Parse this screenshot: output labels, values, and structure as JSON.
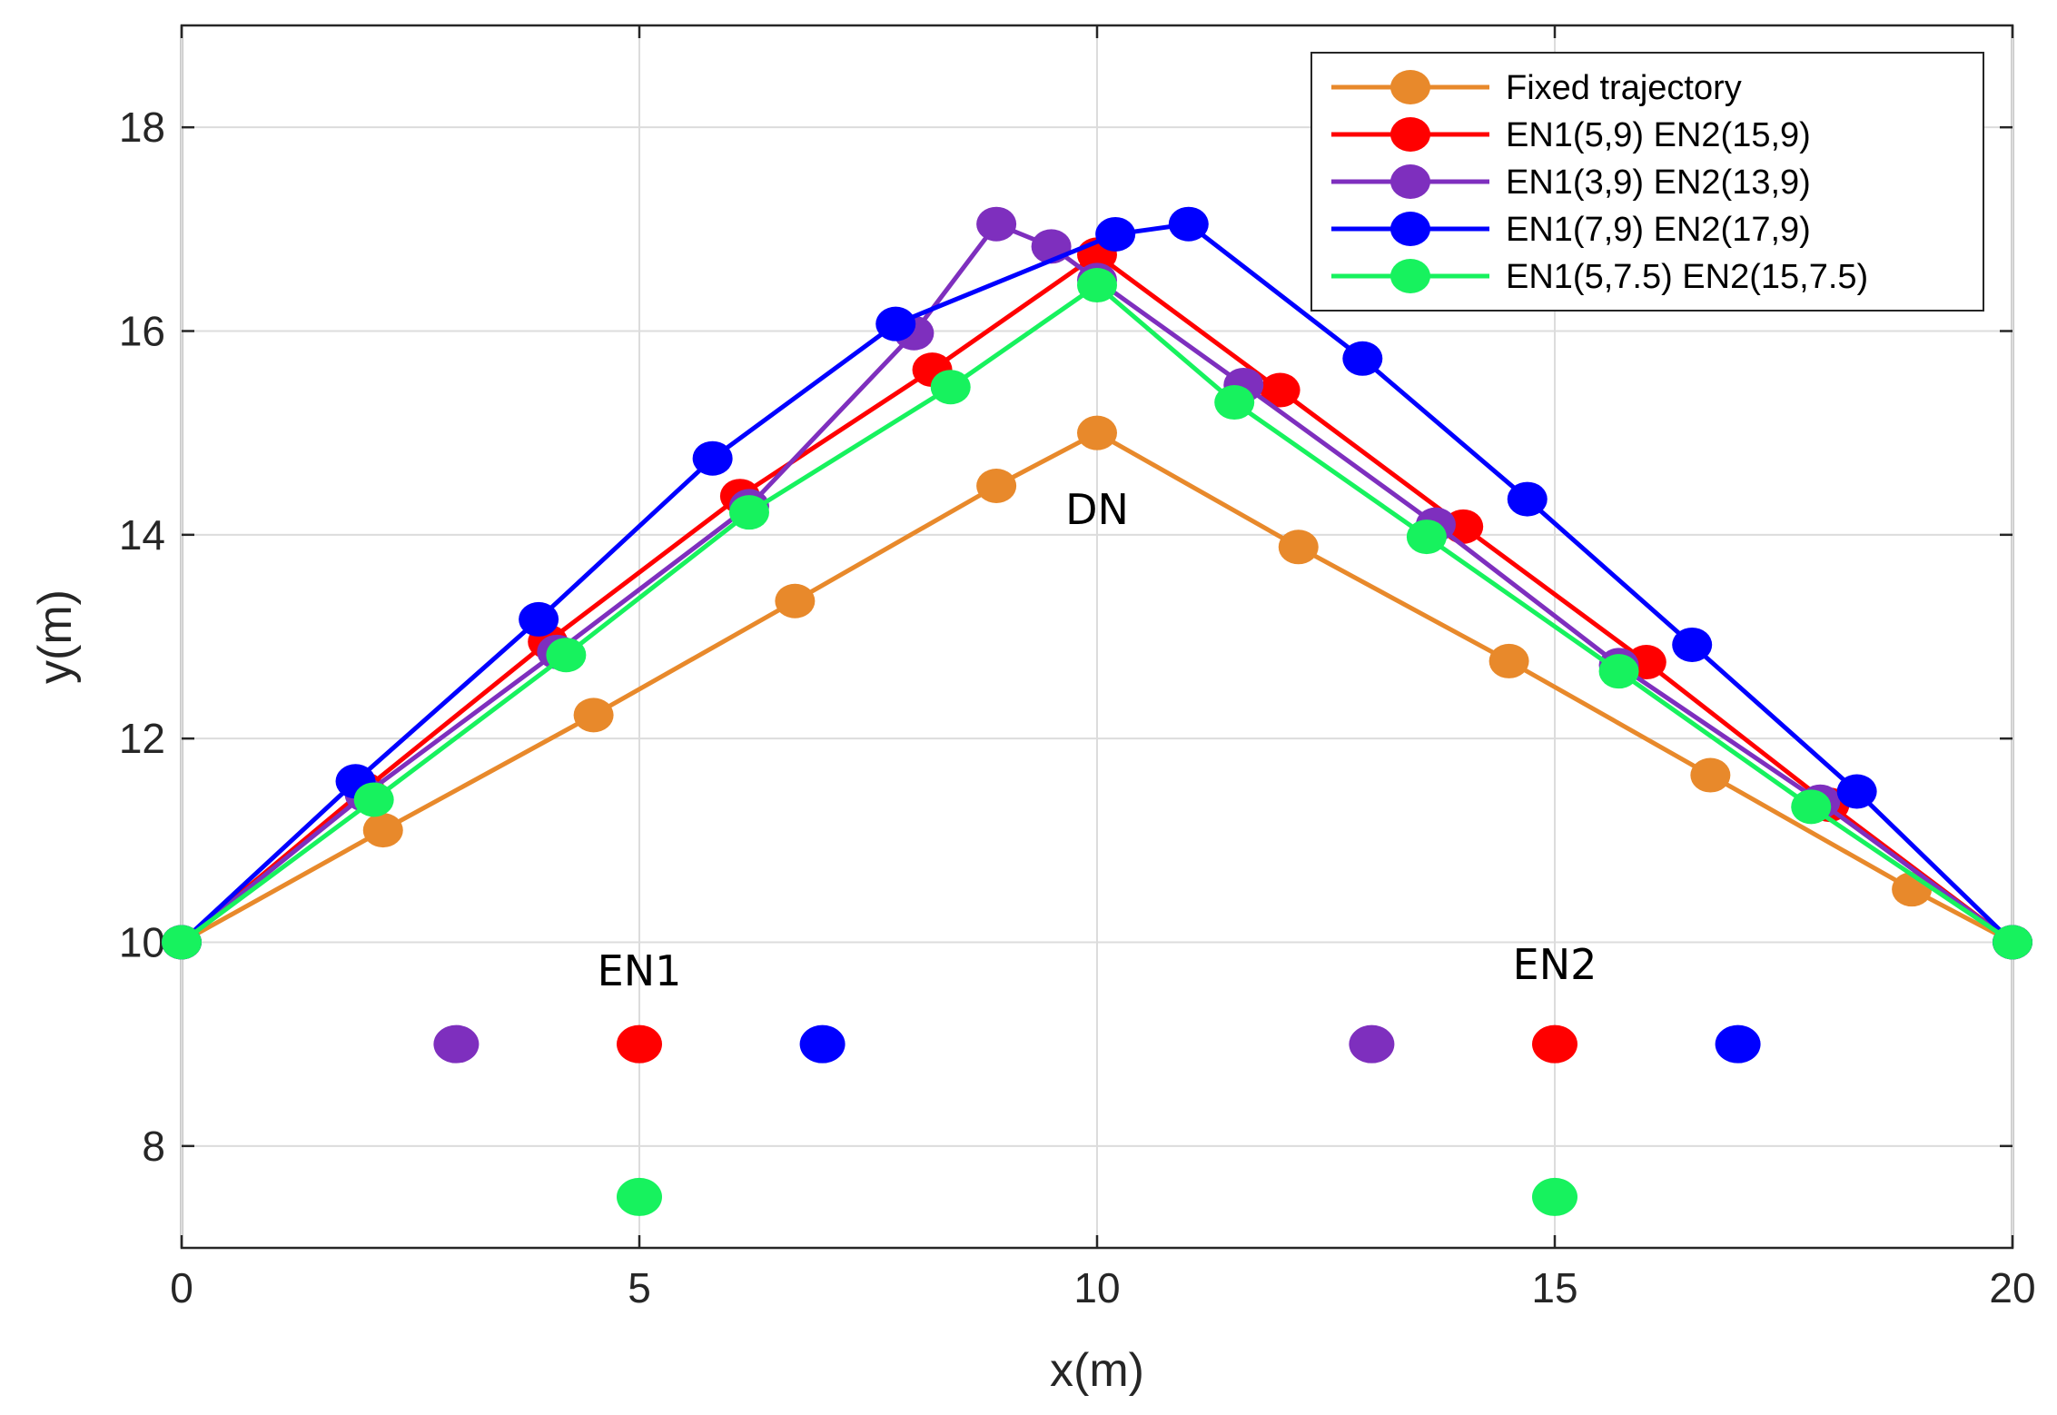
{
  "chart_data": {
    "type": "line",
    "title": "",
    "xlabel": "x(m)",
    "ylabel": "y(m)",
    "xlim": [
      0,
      20
    ],
    "ylim": [
      7,
      19
    ],
    "xticks": [
      0,
      5,
      10,
      15,
      20
    ],
    "yticks": [
      8,
      10,
      12,
      14,
      16,
      18
    ],
    "grid": true,
    "legend_position": "top-right",
    "series": [
      {
        "name": "Fixed trajectory",
        "color": "#e8892b",
        "points": [
          [
            0,
            10
          ],
          [
            2.2,
            11.1
          ],
          [
            4.5,
            12.23
          ],
          [
            6.7,
            13.35
          ],
          [
            8.9,
            14.48
          ],
          [
            10,
            15
          ],
          [
            12.2,
            13.88
          ],
          [
            14.5,
            12.76
          ],
          [
            16.7,
            11.64
          ],
          [
            18.9,
            10.52
          ],
          [
            20,
            10
          ]
        ]
      },
      {
        "name": "EN1(5,9) EN2(15,9)",
        "color": "#ff0000",
        "points": [
          [
            0,
            10
          ],
          [
            2,
            11.5
          ],
          [
            4,
            12.95
          ],
          [
            6.1,
            14.38
          ],
          [
            8.2,
            15.62
          ],
          [
            10,
            16.75
          ],
          [
            12,
            15.42
          ],
          [
            14,
            14.08
          ],
          [
            16,
            12.75
          ],
          [
            18,
            11.35
          ],
          [
            20,
            10
          ]
        ]
      },
      {
        "name": "EN1(3,9) EN2(13,9)",
        "color": "#7e2fbe",
        "points": [
          [
            0,
            10
          ],
          [
            2,
            11.45
          ],
          [
            4.1,
            12.85
          ],
          [
            6.2,
            14.28
          ],
          [
            8,
            15.98
          ],
          [
            8.9,
            17.05
          ],
          [
            9.5,
            16.83
          ],
          [
            10,
            16.5
          ],
          [
            11.6,
            15.47
          ],
          [
            13.7,
            14.1
          ],
          [
            15.7,
            12.72
          ],
          [
            17.9,
            11.38
          ],
          [
            20,
            10
          ]
        ]
      },
      {
        "name": "EN1(7,9) EN2(17,9)",
        "color": "#0000ff",
        "points": [
          [
            0,
            10
          ],
          [
            1.9,
            11.58
          ],
          [
            3.9,
            13.17
          ],
          [
            5.8,
            14.75
          ],
          [
            7.8,
            16.07
          ],
          [
            10.2,
            16.95
          ],
          [
            11,
            17.05
          ],
          [
            12.9,
            15.73
          ],
          [
            14.7,
            14.35
          ],
          [
            16.5,
            12.92
          ],
          [
            18.3,
            11.48
          ],
          [
            20,
            10
          ]
        ]
      },
      {
        "name": "EN1(5,7.5) EN2(15,7.5)",
        "color": "#17f25e",
        "points": [
          [
            0,
            10
          ],
          [
            2.1,
            11.4
          ],
          [
            4.2,
            12.82
          ],
          [
            6.2,
            14.22
          ],
          [
            8.4,
            15.45
          ],
          [
            10,
            16.45
          ],
          [
            11.5,
            15.3
          ],
          [
            13.6,
            13.98
          ],
          [
            15.7,
            12.66
          ],
          [
            17.8,
            11.33
          ],
          [
            20,
            10
          ]
        ]
      }
    ],
    "nodes": [
      {
        "x": 3,
        "y": 9,
        "color": "#7e2fbe"
      },
      {
        "x": 5,
        "y": 9,
        "color": "#ff0000"
      },
      {
        "x": 7,
        "y": 9,
        "color": "#0000ff"
      },
      {
        "x": 13,
        "y": 9,
        "color": "#7e2fbe"
      },
      {
        "x": 15,
        "y": 9,
        "color": "#ff0000"
      },
      {
        "x": 17,
        "y": 9,
        "color": "#0000ff"
      },
      {
        "x": 5,
        "y": 7.5,
        "color": "#17f25e"
      },
      {
        "x": 15,
        "y": 7.5,
        "color": "#17f25e"
      }
    ],
    "annotations": [
      {
        "text": "DN",
        "x": 10,
        "y": 14.25
      },
      {
        "text": "EN1",
        "x": 5,
        "y": 9.72
      },
      {
        "text": "EN2",
        "x": 15,
        "y": 9.78
      }
    ]
  }
}
